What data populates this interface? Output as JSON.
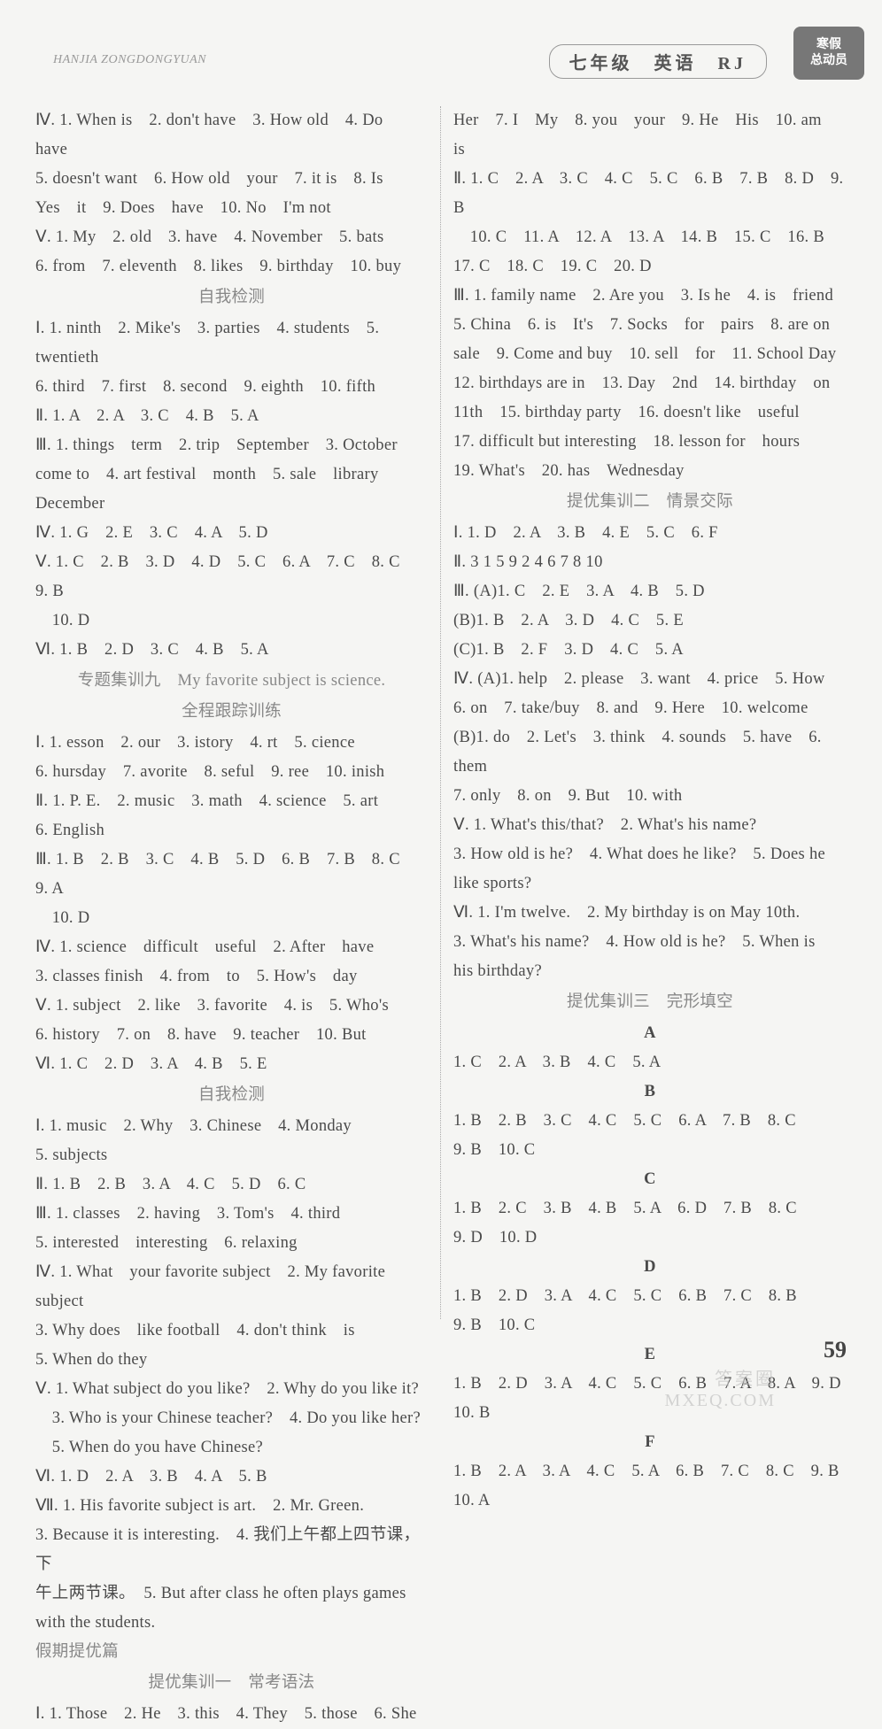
{
  "header": {
    "left_text": "HANJIA ZONGDONGYUAN",
    "right_text": "七年级　英语　RJ",
    "badge_line1": "寒假",
    "badge_line2": "总动员"
  },
  "left_col": {
    "p1": "Ⅳ. 1. When is　2. don't have　3. How old　4. Do　have",
    "p2": "5. doesn't want　6. How old　your　7. it is　8. Is",
    "p3": "Yes　it　9. Does　have　10. No　I'm not",
    "p4": "Ⅴ. 1. My　2. old　3. have　4. November　5. bats",
    "p5": "6. from　7. eleventh　8. likes　9. birthday　10. buy",
    "sec1": "自我检测",
    "p6": "Ⅰ. 1. ninth　2. Mike's　3. parties　4. students　5. twentieth",
    "p7": "6. third　7. first　8. second　9. eighth　10. fifth",
    "p8": "Ⅱ. 1. A　2. A　3. C　4. B　5. A",
    "p9": "Ⅲ. 1. things　term　2. trip　September　3. October",
    "p10": "come to　4. art festival　month　5. sale　library",
    "p11": "December",
    "p12": "Ⅳ. 1. G　2. E　3. C　4. A　5. D",
    "p13": "Ⅴ. 1. C　2. B　3. D　4. D　5. C　6. A　7. C　8. C　9. B",
    "p14": "　10. D",
    "p15": "Ⅵ. 1. B　2. D　3. C　4. B　5. A",
    "sec2a": "专题集训九　My favorite subject is science.",
    "sec2b": "全程跟踪训练",
    "p16": "Ⅰ. 1. esson　2. our　3. istory　4. rt　5. cience",
    "p17": "6. hursday　7. avorite　8. seful　9. ree　10. inish",
    "p18": "Ⅱ. 1. P. E.　2. music　3. math　4. science　5. art",
    "p19": "6. English",
    "p20": "Ⅲ. 1. B　2. B　3. C　4. B　5. D　6. B　7. B　8. C　9. A",
    "p21": "　10. D",
    "p22": "Ⅳ. 1. science　difficult　useful　2. After　have",
    "p23": "3. classes finish　4. from　to　5. How's　day",
    "p24": "Ⅴ. 1. subject　2. like　3. favorite　4. is　5. Who's",
    "p25": "6. history　7. on　8. have　9. teacher　10. But",
    "p26": "Ⅵ. 1. C　2. D　3. A　4. B　5. E",
    "sec3": "自我检测",
    "p27": "Ⅰ. 1. music　2. Why　3. Chinese　4. Monday",
    "p28": "5. subjects",
    "p29": "Ⅱ. 1. B　2. B　3. A　4. C　5. D　6. C",
    "p30": "Ⅲ. 1. classes　2. having　3. Tom's　4. third",
    "p31": "5. interested　interesting　6. relaxing",
    "p32": "Ⅳ. 1. What　your favorite subject　2. My favorite subject",
    "p33": "3. Why does　like football　4. don't think　is",
    "p34": "5. When do they",
    "p35": "Ⅴ. 1. What subject do you like?　2. Why do you like it?",
    "p36": "　3. Who is your Chinese teacher?　4. Do you like her?",
    "p37": "　5. When do you have Chinese?",
    "p38": "Ⅵ. 1. D　2. A　3. B　4. A　5. B",
    "p39": "Ⅶ. 1. His favorite subject is art.　2. Mr. Green.",
    "p40": "3. Because it is interesting.　4. 我们上午都上四节课，下",
    "p41": "午上两节课。　5. But after class he often plays games",
    "p42": "with the students.",
    "sec4": "假期提优篇",
    "sec5": "提优集训一　常考语法",
    "p43": "Ⅰ. 1. Those　2. He　3. this　4. They　5. those　6. She"
  },
  "right_col": {
    "p1": "Her　7. I　My　8. you　your　9. He　His　10. am　is",
    "p2": "Ⅱ. 1. C　2. A　3. C　4. C　5. C　6. B　7. B　8. D　9. B",
    "p3": "　10. C　11. A　12. A　13. A　14. B　15. C　16. B",
    "p4": "17. C　18. C　19. C　20. D",
    "p5": "Ⅲ. 1. family name　2. Are you　3. Is he　4. is　friend",
    "p6": "5. China　6. is　It's　7. Socks　for　pairs　8. are on",
    "p7": "sale　9. Come and buy　10. sell　for　11. School Day",
    "p8": "12. birthdays are in　13. Day　2nd　14. birthday　on",
    "p9": "11th　15. birthday party　16. doesn't like　useful",
    "p10": "17. difficult but interesting　18. lesson for　hours",
    "p11": "19. What's　20. has　Wednesday",
    "sec1": "提优集训二　情景交际",
    "p12": "Ⅰ. 1. D　2. A　3. B　4. E　5. C　6. F",
    "p13": "Ⅱ. 3 1 5 9 2 4 6 7 8 10",
    "p14": "Ⅲ. (A)1. C　2. E　3. A　4. B　5. D",
    "p15": "(B)1. B　2. A　3. D　4. C　5. E",
    "p16": "(C)1. B　2. F　3. D　4. C　5. A",
    "p17": "Ⅳ. (A)1. help　2. please　3. want　4. price　5. How",
    "p18": "6. on　7. take/buy　8. and　9. Here　10. welcome",
    "p19": "(B)1. do　2. Let's　3. think　4. sounds　5. have　6. them",
    "p20": "7. only　8. on　9. But　10. with",
    "p21": "Ⅴ. 1. What's this/that?　2. What's his name?",
    "p22": "3. How old is he?　4. What does he like?　5. Does he",
    "p23": "like sports?",
    "p24": "Ⅵ. 1. I'm twelve.　2. My birthday is on May 10th.",
    "p25": "3. What's his name?　4. How old is he?　5. When is",
    "p26": "his birthday?",
    "sec2": "提优集训三　完形填空",
    "hA": "A",
    "pA": "1. C　2. A　3. B　4. C　5. A",
    "hB": "B",
    "pB1": "1. B　2. B　3. C　4. C　5. C　6. A　7. B　8. C",
    "pB2": "9. B　10. C",
    "hC": "C",
    "pC1": "1. B　2. C　3. B　4. B　5. A　6. D　7. B　8. C",
    "pC2": "9. D　10. D",
    "hD": "D",
    "pD1": "1. B　2. D　3. A　4. C　5. C　6. B　7. C　8. B",
    "pD2": "9. B　10. C",
    "hE": "E",
    "pE1": "1. B　2. D　3. A　4. C　5. C　6. B　7. A　8. A　9. D",
    "pE2": "10. B",
    "hF": "F",
    "pF1": "1. B　2. A　3. A　4. C　5. A　6. B　7. C　8. C　9. B",
    "pF2": "10. A"
  },
  "footer": {
    "page": "59",
    "wm1": "答案圈",
    "wm2": "MXEQ.COM"
  }
}
